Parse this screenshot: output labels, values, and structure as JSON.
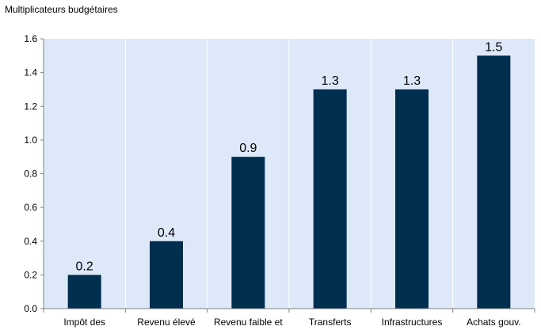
{
  "chart_data": {
    "type": "bar",
    "title": "",
    "ylabel": "Multiplicateurs budgétaires",
    "xlabel": "",
    "categories": [
      "Impôt des",
      "Revenu élevé",
      "Revenu faible et",
      "Transferts",
      "Infrastructures",
      "Achats gouv."
    ],
    "values": [
      0.2,
      0.4,
      0.9,
      1.3,
      1.3,
      1.5
    ],
    "data_labels": [
      "0.2",
      "0.4",
      "0.9",
      "1.3",
      "1.3",
      "1.5"
    ],
    "ylim": [
      0,
      1.6
    ],
    "yticks": [
      0.0,
      0.2,
      0.4,
      0.6,
      0.8,
      1.0,
      1.2,
      1.4,
      1.6
    ],
    "ytick_labels": [
      "0.0",
      "0.2",
      "0.4",
      "0.6",
      "0.8",
      "1.0",
      "1.2",
      "1.4",
      "1.6"
    ],
    "grid": "vertical category separators",
    "legend": "none",
    "colors": {
      "plot_background": "#dde9f8",
      "bar": "#002e4f",
      "grid": "#ffffff",
      "axis": "#808080"
    }
  }
}
